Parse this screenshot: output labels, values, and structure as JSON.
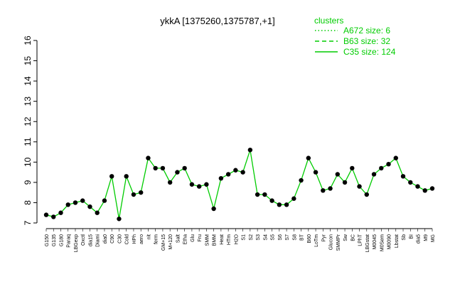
{
  "chart_data": {
    "type": "line",
    "title": "ykkA [1375260,1375787,+1]",
    "xlabel": "",
    "ylabel": "",
    "ylim": [
      7,
      16
    ],
    "yticks": [
      7,
      8,
      9,
      10,
      11,
      12,
      13,
      14,
      15,
      16
    ],
    "grid": false,
    "legend": {
      "title": "clusters",
      "placement": "top-right",
      "entries": [
        {
          "label": "A672 size: 6",
          "style": "dotted"
        },
        {
          "label": "B63 size: 32",
          "style": "dashed"
        },
        {
          "label": "C35 size: 124",
          "style": "solid"
        }
      ]
    },
    "colors": {
      "series": "#00cc00",
      "points": "#000000",
      "title": "#000000"
    },
    "categories": [
      "G150",
      "G135",
      "G180",
      "Paraq",
      "LBGexp",
      "Oxctl",
      "dia15",
      "Diami",
      "dia0",
      "C90",
      "C30",
      "Cold",
      "HPh",
      "aero",
      "nit",
      "ferm",
      "GM+15",
      "M+120",
      "Salt",
      "Etha",
      "Glu",
      "Fru",
      "SMM",
      "BMM",
      "Heat",
      "HTm",
      "H2O",
      "S1",
      "S2",
      "S3",
      "S4",
      "S5",
      "S6",
      "S7",
      "S8",
      "BT",
      "B60",
      "LoTm",
      "Pyr",
      "Glucon",
      "SMMPr",
      "Sw",
      "BC",
      "LPhT",
      "LBGstat",
      "M0045",
      "M0Sem",
      "M0090",
      "Lbstat",
      "Sb",
      "BI",
      "dia5",
      "M9",
      "MG"
    ],
    "series": [
      {
        "values": [
          7.4,
          7.3,
          7.5,
          7.9,
          8.0,
          8.1,
          7.8,
          7.5,
          8.1,
          9.3,
          7.2,
          9.3,
          8.4,
          8.5,
          10.2,
          9.7,
          9.7,
          9.0,
          9.5,
          9.7,
          8.9,
          8.8,
          8.9,
          7.7,
          9.2,
          9.4,
          9.6,
          9.5,
          10.6,
          8.4,
          8.4,
          8.1,
          7.9,
          7.9,
          8.2,
          9.1,
          10.2,
          9.5,
          8.6,
          8.7,
          9.4,
          9.0,
          9.7,
          8.8,
          8.4,
          9.4,
          9.7,
          9.9,
          10.2,
          9.3,
          9.0,
          8.8,
          8.6,
          8.7
        ]
      }
    ]
  }
}
